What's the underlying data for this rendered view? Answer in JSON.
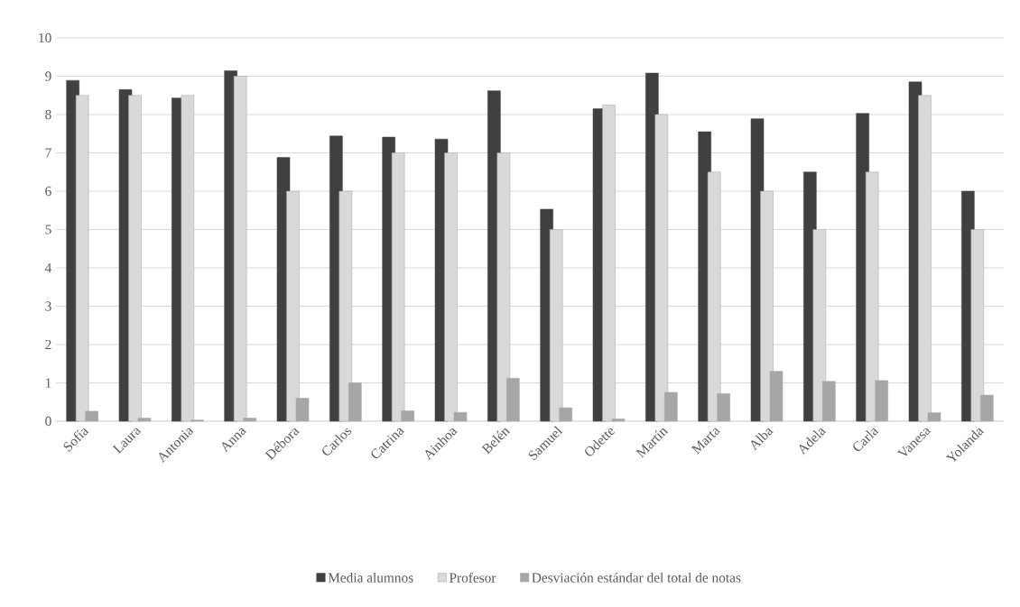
{
  "chart_data": {
    "type": "bar",
    "categories": [
      "Sofía",
      "Laura",
      "Antonia",
      "Anna",
      "Débora",
      "Carlos",
      "Catrina",
      "Ainhoa",
      "Belén",
      "Samuel",
      "Odette",
      "Martín",
      "Marta",
      "Alba",
      "Adela",
      "Carla",
      "Vanesa",
      "Yolanda"
    ],
    "series": [
      {
        "name": "Media alumnos",
        "color": "#404040",
        "values": [
          8.89,
          8.65,
          8.43,
          9.14,
          6.88,
          7.44,
          7.41,
          7.36,
          8.62,
          5.53,
          8.15,
          9.08,
          7.55,
          7.89,
          6.5,
          8.03,
          8.85,
          6.0
        ]
      },
      {
        "name": "Profesor",
        "color": "#d9d9d9",
        "values": [
          8.5,
          8.5,
          8.5,
          9.0,
          6.0,
          6.0,
          7.0,
          7.0,
          7.0,
          5.0,
          8.25,
          8.0,
          6.5,
          6.0,
          5.0,
          6.5,
          8.5,
          5.0
        ]
      },
      {
        "name": "Desviación estándar del total de notas",
        "color": "#a6a6a6",
        "values": [
          0.26,
          0.08,
          0.03,
          0.08,
          0.6,
          1.0,
          0.27,
          0.23,
          1.12,
          0.35,
          0.06,
          0.75,
          0.72,
          1.3,
          1.04,
          1.06,
          0.22,
          0.68
        ]
      }
    ],
    "ylim": [
      0,
      10
    ],
    "yticks": [
      0,
      1,
      2,
      3,
      4,
      5,
      6,
      7,
      8,
      9,
      10
    ],
    "grid": "y",
    "legend": "bottom"
  }
}
